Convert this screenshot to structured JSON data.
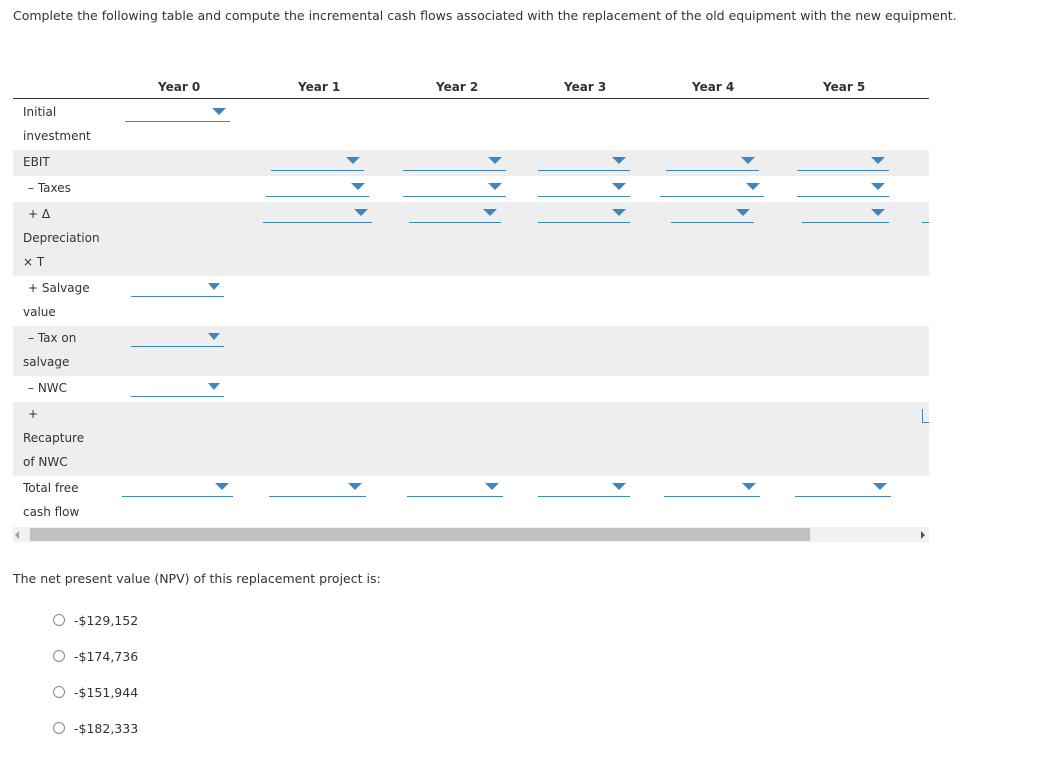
{
  "instruction": "Complete the following table and compute the incremental cash flows associated with the replacement of the old equipment with the new equipment.",
  "columns": [
    "Year 0",
    "Year 1",
    "Year 2",
    "Year 3",
    "Year 4",
    "Year 5"
  ],
  "rows": [
    {
      "lines": [
        "Initial",
        "investment"
      ]
    },
    {
      "lines": [
        "EBIT"
      ]
    },
    {
      "lines": [
        "– Taxes"
      ]
    },
    {
      "lines": [
        "+ Δ",
        "Depreciation",
        "× T"
      ]
    },
    {
      "lines": [
        "+ Salvage",
        "value"
      ]
    },
    {
      "lines": [
        "– Tax on",
        "salvage"
      ]
    },
    {
      "lines": [
        "– NWC"
      ]
    },
    {
      "lines": [
        "+",
        "Recapture",
        "of NWC"
      ]
    },
    {
      "lines": [
        "Total free",
        "cash flow"
      ]
    }
  ],
  "npv_question": "The net present value (NPV) of this replacement project is:",
  "options": [
    "-$129,152",
    "-$174,736",
    "-$151,944",
    "-$182,333"
  ]
}
